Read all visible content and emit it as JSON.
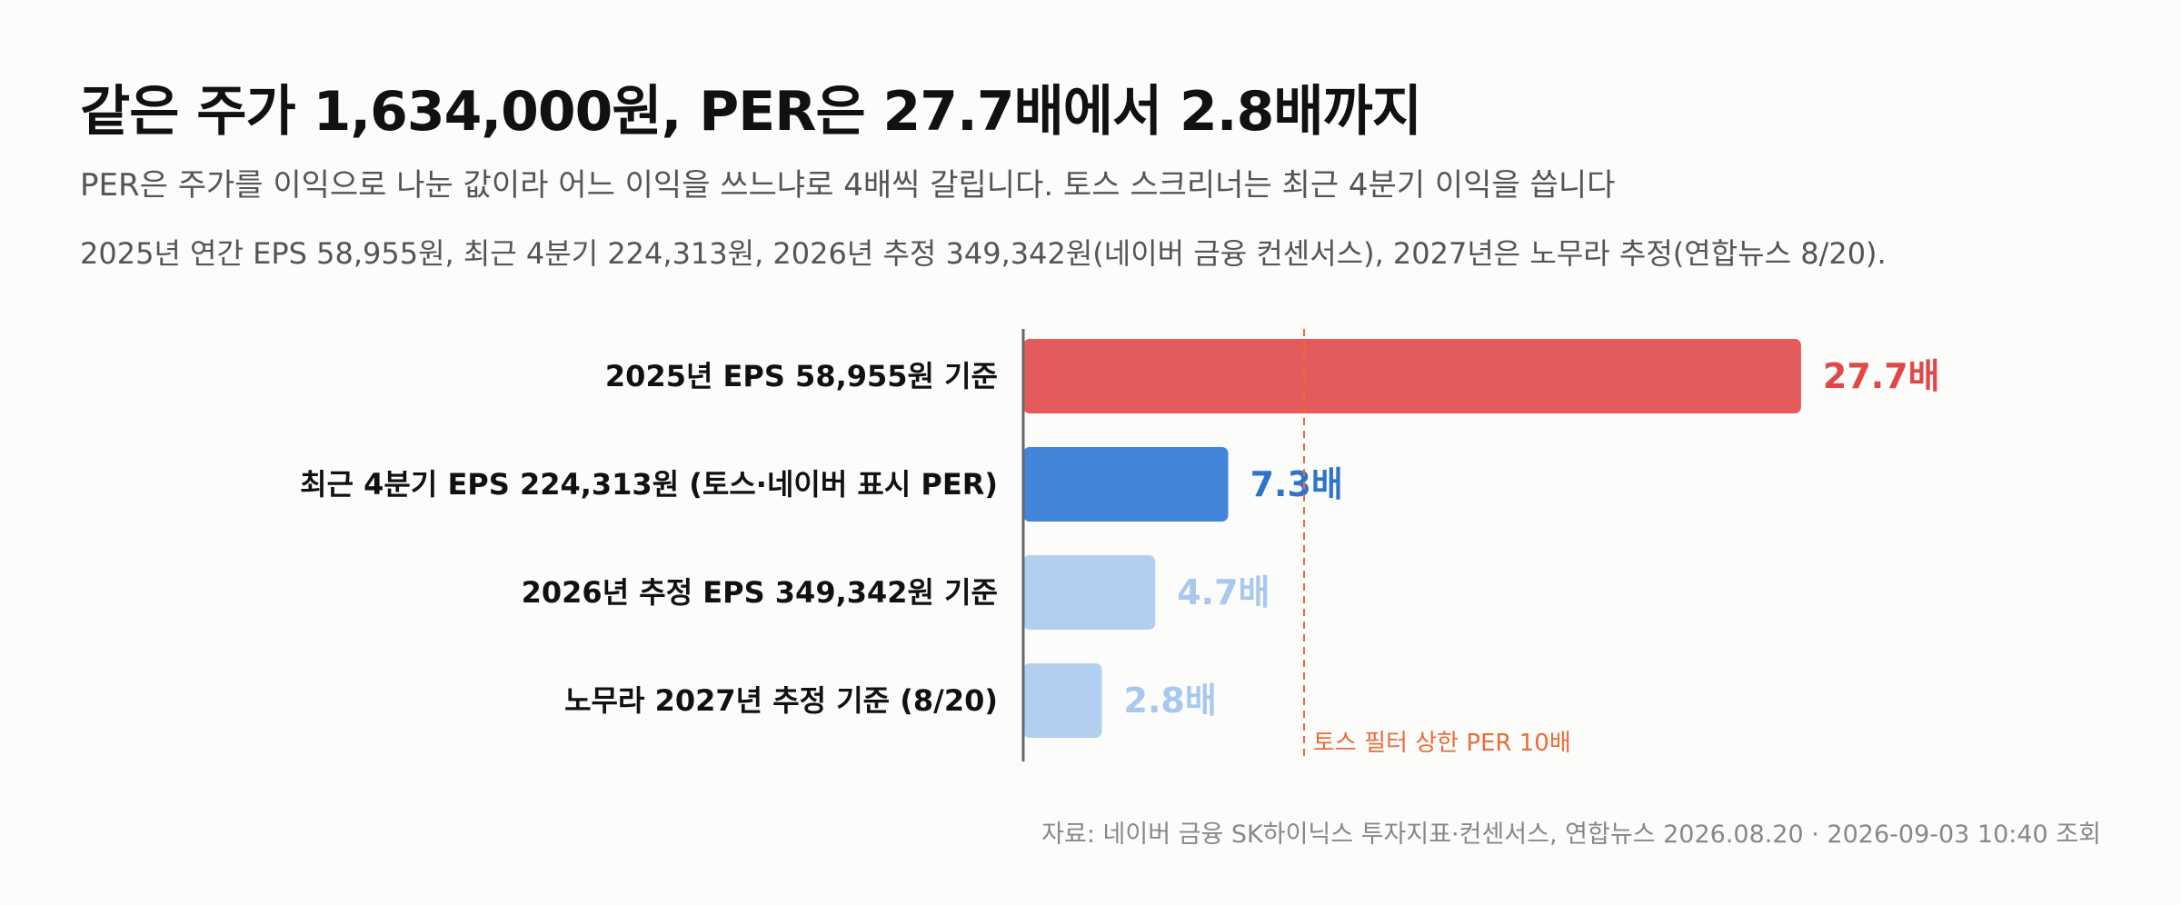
{
  "header": {
    "title": "같은 주가 1,634,000원, PER은 27.7배에서 2.8배까지",
    "subtitle": "PER은 주가를 이익으로 나눈 값이라 어느 이익을 쓰느냐로 4배씩 갈립니다. 토스 스크리너는 최근 4분기 이익을 씁니다",
    "note": "2025년 연간 EPS 58,955원, 최근 4분기 224,313원, 2026년 추정 349,342원(네이버 금융 컨센서스), 2027년은 노무라 추정(연합뉴스 8/20)."
  },
  "chart_data": {
    "type": "bar",
    "orientation": "horizontal",
    "categories": [
      "2025년 EPS 58,955원 기준",
      "최근 4분기 EPS 224,313원 (토스·네이버 표시 PER)",
      "2026년 추정 EPS 349,342원 기준",
      "노무라 2027년 추정 기준 (8/20)"
    ],
    "values": [
      27.7,
      7.3,
      4.7,
      2.8
    ],
    "value_labels": [
      "27.7배",
      "7.3배",
      "4.7배",
      "2.8배"
    ],
    "bar_colors": [
      "#e55b5b",
      "#4285db",
      "#b3cff0",
      "#b3cff0"
    ],
    "label_colors": [
      "#e04848",
      "#2f73cc",
      "#a9c8ee",
      "#a9c8ee"
    ],
    "xlim": [
      0,
      30
    ],
    "reference_line": {
      "value": 10,
      "label": "토스 필터 상한 PER 10배",
      "color": "#ec6a3c"
    },
    "grid": false,
    "legend": "none"
  },
  "footer": {
    "source": "자료: 네이버 금융 SK하이닉스 투자지표·컨센서스, 연합뉴스 2026.08.20 · 2026-09-03 10:40 조회"
  }
}
